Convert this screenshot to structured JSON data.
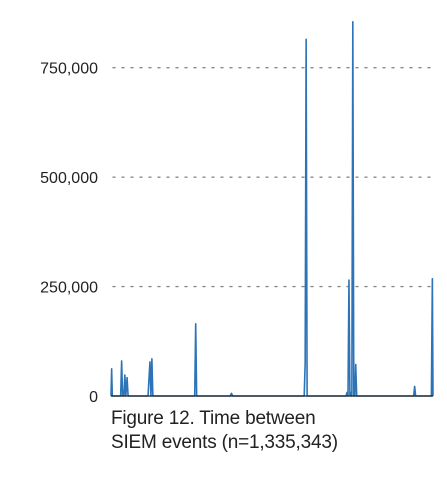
{
  "chart_data": {
    "type": "line",
    "title": "Figure 12. Time between SIEM events (n=1,335,343)",
    "title_lines": [
      "Figure 12. Time between",
      "SIEM events (n=1,335,343)"
    ],
    "xlabel": "",
    "ylabel": "",
    "grid": true,
    "ylim": [
      0,
      860000
    ],
    "yticks": [
      0,
      250000,
      500000,
      750000
    ],
    "ytick_labels": [
      "0",
      "250,000",
      "500,000",
      "750,000"
    ],
    "xlim": [
      0,
      100
    ],
    "color": "#2d73b7",
    "x": [
      0,
      0.2,
      0.4,
      0.8,
      3.0,
      3.3,
      3.6,
      4.0,
      4.3,
      4.6,
      5.0,
      5.3,
      5.6,
      6.0,
      6.5,
      11.5,
      11.8,
      12.1,
      12.4,
      12.7,
      13.0,
      13.3,
      26.0,
      26.3,
      26.6,
      27.0,
      28.5,
      29.0,
      37.0,
      37.4,
      37.8,
      60.0,
      60.3,
      60.6,
      60.9,
      61.2,
      73.0,
      73.3,
      73.6,
      73.9,
      74.2,
      74.5,
      74.8,
      75.1,
      75.4,
      75.7,
      76.0,
      76.3,
      76.6,
      76.9,
      94.0,
      94.3,
      94.6,
      99.5,
      99.8,
      100
    ],
    "y": [
      0,
      62000,
      0,
      0,
      0,
      80000,
      0,
      0,
      48000,
      0,
      42000,
      0,
      0,
      0,
      0,
      0,
      40000,
      78000,
      0,
      85000,
      0,
      0,
      0,
      165000,
      0,
      0,
      0,
      0,
      0,
      6000,
      0,
      0,
      75000,
      815000,
      0,
      0,
      0,
      8000,
      0,
      265000,
      0,
      8000,
      0,
      855000,
      0,
      0,
      72000,
      0,
      0,
      0,
      0,
      22000,
      0,
      0,
      268000,
      0
    ]
  }
}
